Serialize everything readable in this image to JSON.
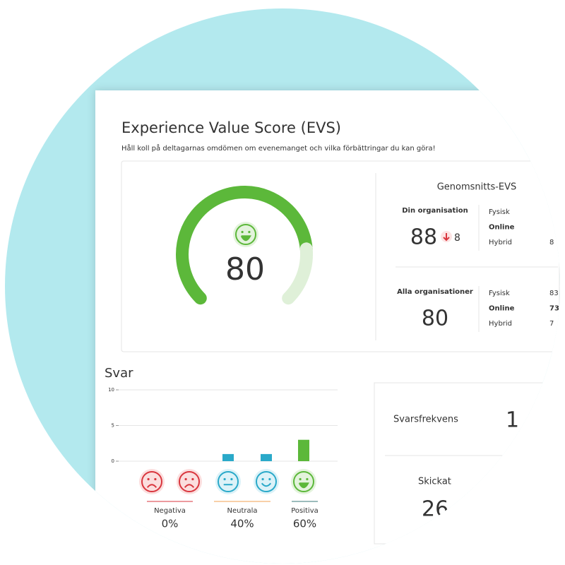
{
  "header": {
    "title": "Experience Value Score (EVS)",
    "subtitle": "Håll koll på deltagarnas omdömen om evenemanget och vilka förbättringar du kan göra!"
  },
  "gauge": {
    "value": 80
  },
  "average": {
    "title": "Genomsnitts-EVS",
    "own": {
      "label": "Din organisation",
      "value": 88,
      "change": 8,
      "rows": [
        {
          "label": "Fysisk"
        },
        {
          "label": "Online"
        },
        {
          "label": "Hybrid",
          "value": "8"
        }
      ]
    },
    "all": {
      "label": "Alla organisationer",
      "value": 80,
      "rows": [
        {
          "label": "Fysisk",
          "value": "83"
        },
        {
          "label": "Online",
          "value": "73"
        },
        {
          "label": "Hybrid",
          "value": "7"
        }
      ]
    }
  },
  "chart_data": {
    "type": "bar",
    "title": "Svar",
    "categories": [
      null,
      null,
      null,
      null,
      null
    ],
    "values": [
      0,
      0,
      1,
      1,
      3
    ],
    "colors": [
      "#e06b6b",
      "#e06b6b",
      "#2aa9c9",
      "#2aa9c9",
      "#5cb83a"
    ],
    "ylim": [
      0,
      10
    ],
    "yticks": [
      0,
      5,
      10
    ],
    "grid": true,
    "groups": {
      "names": [
        "Negativa",
        "Neutrala",
        "Positiva"
      ],
      "values": [
        0,
        40,
        60
      ],
      "value_labels": [
        "0%",
        "40%",
        "60%"
      ],
      "colors": [
        "#d9363e",
        "#f0a050",
        "#3a7a7a"
      ]
    }
  },
  "stats": [
    {
      "label": "Svarsfrekvens",
      "value": "1"
    },
    {
      "label": "Skickat",
      "value": "26"
    }
  ]
}
